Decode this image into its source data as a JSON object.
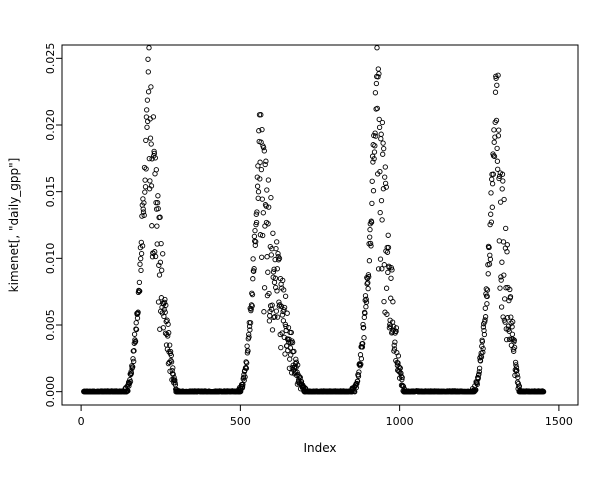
{
  "chart_data": {
    "type": "scatter",
    "title": "",
    "xlabel": "Index",
    "ylabel": "kimenet[, \"daily_gpp\"]",
    "xlim": [
      0,
      1500
    ],
    "ylim": [
      0.0,
      0.025
    ],
    "x_ticks": [
      0,
      500,
      1000,
      1500
    ],
    "x_tick_labels": [
      "0",
      "500",
      "1000",
      "1500"
    ],
    "y_ticks": [
      0.0,
      0.005,
      0.01,
      0.015,
      0.02,
      0.025
    ],
    "y_tick_labels": [
      "0.000",
      "0.005",
      "0.010",
      "0.015",
      "0.020",
      "0.025"
    ],
    "marker": "open-circle",
    "marker_color": "#000000",
    "background_color": "#ffffff",
    "grid": false,
    "legend": "none",
    "n_points_approx": 1460,
    "seed": 42,
    "baseline_value": 0.0,
    "baseline_segments": [
      [
        8,
        138
      ],
      [
        300,
        495
      ],
      [
        705,
        850
      ],
      [
        1015,
        1228
      ],
      [
        1378,
        1452
      ]
    ],
    "peaks": [
      {
        "rise_start": 138,
        "center": 212,
        "fall_end": 300,
        "peak_value": 0.0252
      },
      {
        "rise_start": 495,
        "center": 560,
        "fall_end": 705,
        "peak_value": 0.0205
      },
      {
        "rise_start": 850,
        "center": 930,
        "fall_end": 1015,
        "peak_value": 0.0253
      },
      {
        "rise_start": 1228,
        "center": 1305,
        "fall_end": 1378,
        "peak_value": 0.0243
      }
    ]
  }
}
